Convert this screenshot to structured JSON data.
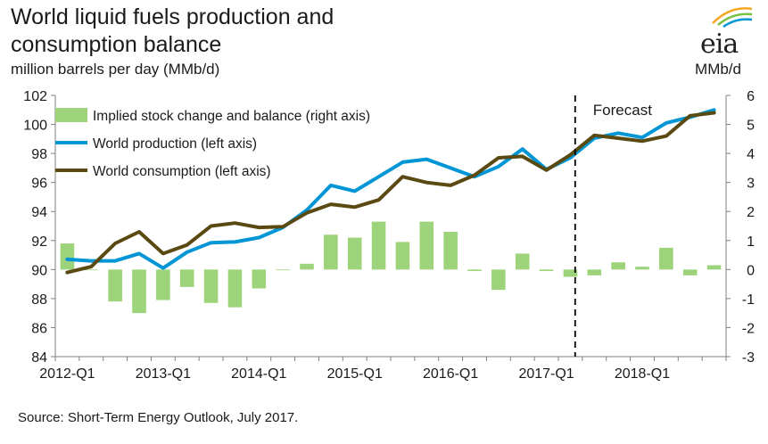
{
  "header": {
    "title": "World liquid fuels production and consumption balance",
    "subtitle": "million  barrels per day (MMb/d)",
    "right_unit": "MMb/d",
    "logo_text": "eia"
  },
  "footer": {
    "source": "Source: Short-Term Energy Outlook, July 2017."
  },
  "chart_data": {
    "type": "bar+line",
    "title": "World liquid fuels production and consumption balance",
    "ylabel_left": "million  barrels per day (MMb/d)",
    "ylabel_right": "MMb/d",
    "ylim_left": [
      84,
      102
    ],
    "ylim_right": [
      -3,
      6
    ],
    "yticks_left": [
      "84",
      "86",
      "88",
      "90",
      "92",
      "94",
      "96",
      "98",
      "100",
      "102"
    ],
    "yticks_right": [
      "-3",
      "-2",
      "-1",
      "0",
      "1",
      "2",
      "3",
      "4",
      "5",
      "6"
    ],
    "xtick_labels": [
      "2012-Q1",
      "2013-Q1",
      "2014-Q1",
      "2015-Q1",
      "2016-Q1",
      "2017-Q1",
      "2018-Q1"
    ],
    "quarters": [
      "2012-Q1",
      "2012-Q2",
      "2012-Q3",
      "2012-Q4",
      "2013-Q1",
      "2013-Q2",
      "2013-Q3",
      "2013-Q4",
      "2014-Q1",
      "2014-Q2",
      "2014-Q3",
      "2014-Q4",
      "2015-Q1",
      "2015-Q2",
      "2015-Q3",
      "2015-Q4",
      "2016-Q1",
      "2016-Q2",
      "2016-Q3",
      "2016-Q4",
      "2017-Q1",
      "2017-Q2",
      "2017-Q3",
      "2017-Q4",
      "2018-Q1",
      "2018-Q2",
      "2018-Q3",
      "2018-Q4"
    ],
    "forecast_label": "Forecast",
    "forecast_start_index": 22,
    "colors": {
      "bars": "#9dd37a",
      "production": "#0096d6",
      "consumption": "#5a4a12",
      "forecast_line": "#000000"
    },
    "series": [
      {
        "name": "Implied stock change and balance (right axis)",
        "kind": "bar",
        "axis": "right",
        "values": [
          0.9,
          0.0,
          -1.1,
          -1.5,
          -1.05,
          -0.6,
          -1.15,
          -1.3,
          -0.65,
          0.0,
          0.2,
          1.2,
          1.1,
          1.65,
          0.95,
          1.65,
          1.3,
          -0.05,
          -0.7,
          0.55,
          -0.05,
          -0.25,
          -0.2,
          0.25,
          0.1,
          0.75,
          -0.2,
          0.15
        ]
      },
      {
        "name": "World production (left axis)",
        "kind": "line",
        "axis": "left",
        "values": [
          90.7,
          90.6,
          90.6,
          91.1,
          90.1,
          91.2,
          91.85,
          91.9,
          92.2,
          92.9,
          94.1,
          95.8,
          95.4,
          96.4,
          97.4,
          97.6,
          97.0,
          96.4,
          97.1,
          98.3,
          96.9,
          97.7,
          99.05,
          99.4,
          99.1,
          100.1,
          100.5,
          101.0
        ]
      },
      {
        "name": "World consumption (left axis)",
        "kind": "line",
        "axis": "left",
        "values": [
          89.8,
          90.2,
          91.8,
          92.6,
          91.1,
          91.7,
          93.0,
          93.2,
          92.9,
          92.95,
          93.9,
          94.5,
          94.3,
          94.8,
          96.4,
          96.0,
          95.8,
          96.5,
          97.7,
          97.8,
          96.85,
          97.9,
          99.25,
          99.05,
          98.85,
          99.2,
          100.6,
          100.8
        ]
      }
    ]
  }
}
